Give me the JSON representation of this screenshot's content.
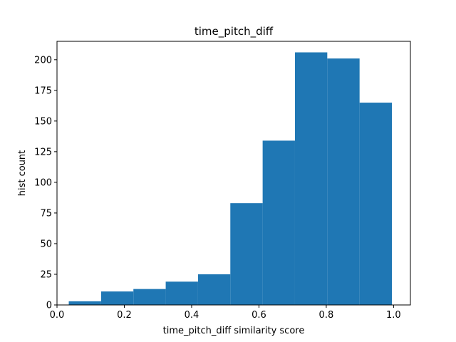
{
  "chart_data": {
    "type": "bar",
    "subtype": "histogram",
    "title": "time_pitch_diff",
    "xlabel": "time_pitch_diff similarity score",
    "ylabel": "hist count",
    "xlim": [
      0.0,
      1.05
    ],
    "ylim": [
      0,
      215
    ],
    "xticks": [
      0.0,
      0.2,
      0.4,
      0.6,
      0.8,
      1.0
    ],
    "xtick_labels": [
      "0.0",
      "0.2",
      "0.4",
      "0.6",
      "0.8",
      "1.0"
    ],
    "yticks": [
      0,
      25,
      50,
      75,
      100,
      125,
      150,
      175,
      200
    ],
    "ytick_labels": [
      "0",
      "25",
      "50",
      "75",
      "100",
      "125",
      "150",
      "175",
      "200"
    ],
    "bin_edges": [
      0.035,
      0.131,
      0.227,
      0.323,
      0.419,
      0.515,
      0.611,
      0.707,
      0.803,
      0.899,
      0.995
    ],
    "values": [
      3,
      11,
      13,
      19,
      25,
      83,
      134,
      206,
      201,
      165
    ],
    "bar_color": "#1f77b4",
    "grid": false,
    "legend": "none"
  }
}
